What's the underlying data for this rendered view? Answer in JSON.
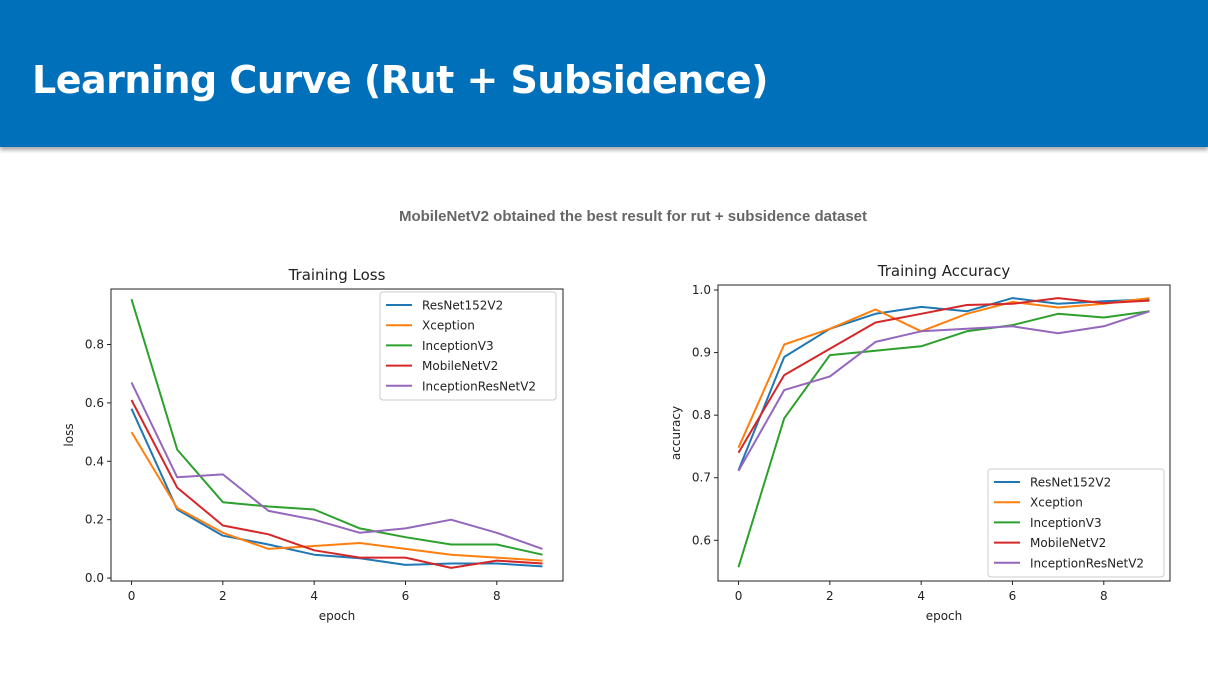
{
  "slide": {
    "title": "Learning Curve (Rut + Subsidence)",
    "subtitle": "MobileNetV2 obtained the best result for rut + subsidence dataset",
    "header_color": "#0070bb"
  },
  "chart_data": [
    {
      "type": "line",
      "title": "Training Loss",
      "xlabel": "epoch",
      "ylabel": "loss",
      "x": [
        0,
        1,
        2,
        3,
        4,
        5,
        6,
        7,
        8,
        9
      ],
      "xlim": [
        -0.45,
        9.45
      ],
      "ylim": [
        -0.01,
        0.99
      ],
      "xticks": [
        0,
        2,
        4,
        6,
        8
      ],
      "yticks": [
        0.0,
        0.2,
        0.4,
        0.6,
        0.8
      ],
      "legend": "upper right",
      "grid": false,
      "series": [
        {
          "name": "ResNet152V2",
          "color": "#1f77b4",
          "values": [
            0.58,
            0.235,
            0.145,
            0.115,
            0.08,
            0.068,
            0.045,
            0.05,
            0.05,
            0.04
          ]
        },
        {
          "name": "Xception",
          "color": "#ff7f0e",
          "values": [
            0.5,
            0.24,
            0.155,
            0.1,
            0.11,
            0.12,
            0.1,
            0.08,
            0.07,
            0.06
          ]
        },
        {
          "name": "InceptionV3",
          "color": "#2ca02c",
          "values": [
            0.955,
            0.44,
            0.26,
            0.245,
            0.235,
            0.17,
            0.14,
            0.115,
            0.115,
            0.08
          ]
        },
        {
          "name": "MobileNetV2",
          "color": "#d62728",
          "values": [
            0.61,
            0.31,
            0.18,
            0.15,
            0.095,
            0.07,
            0.07,
            0.035,
            0.06,
            0.05
          ]
        },
        {
          "name": "InceptionResNetV2",
          "color": "#9467bd",
          "values": [
            0.67,
            0.345,
            0.355,
            0.23,
            0.2,
            0.155,
            0.17,
            0.2,
            0.155,
            0.1
          ]
        }
      ]
    },
    {
      "type": "line",
      "title": "Training Accuracy",
      "xlabel": "epoch",
      "ylabel": "accuracy",
      "x": [
        0,
        1,
        2,
        3,
        4,
        5,
        6,
        7,
        8,
        9
      ],
      "xlim": [
        -0.45,
        9.45
      ],
      "ylim": [
        0.535,
        1.008
      ],
      "xticks": [
        0,
        2,
        4,
        6,
        8
      ],
      "yticks": [
        0.6,
        0.7,
        0.8,
        0.9,
        1.0
      ],
      "legend": "lower right",
      "grid": false,
      "series": [
        {
          "name": "ResNet152V2",
          "color": "#1f77b4",
          "values": [
            0.712,
            0.893,
            0.938,
            0.962,
            0.973,
            0.966,
            0.987,
            0.978,
            0.982,
            0.985
          ]
        },
        {
          "name": "Xception",
          "color": "#ff7f0e",
          "values": [
            0.748,
            0.913,
            0.938,
            0.969,
            0.934,
            0.962,
            0.981,
            0.972,
            0.978,
            0.987
          ]
        },
        {
          "name": "InceptionV3",
          "color": "#2ca02c",
          "values": [
            0.557,
            0.795,
            0.896,
            0.903,
            0.91,
            0.934,
            0.944,
            0.962,
            0.956,
            0.966
          ]
        },
        {
          "name": "MobileNetV2",
          "color": "#d62728",
          "values": [
            0.74,
            0.864,
            0.906,
            0.948,
            0.962,
            0.976,
            0.978,
            0.987,
            0.979,
            0.983
          ]
        },
        {
          "name": "InceptionResNetV2",
          "color": "#9467bd",
          "values": [
            0.711,
            0.84,
            0.862,
            0.917,
            0.934,
            0.938,
            0.942,
            0.931,
            0.942,
            0.966
          ]
        }
      ]
    }
  ]
}
